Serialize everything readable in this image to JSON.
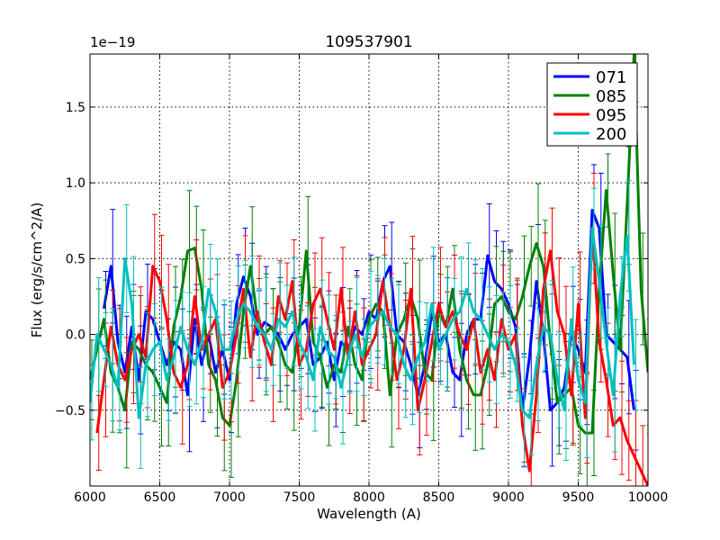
{
  "chart_data": {
    "type": "line",
    "title": "109537901",
    "xlabel": "Wavelength (A)",
    "ylabel": "Flux (erg/s/cm^2/A)",
    "offset_label": "1e−19",
    "xlim": [
      6000,
      10000
    ],
    "ylim": [
      -1.0,
      1.85
    ],
    "xticks": [
      6000,
      6500,
      7000,
      7500,
      8000,
      8500,
      9000,
      9500,
      10000
    ],
    "xtick_labels": [
      "6000",
      "6500",
      "7000",
      "7500",
      "8000",
      "8500",
      "9000",
      "9500",
      "10000"
    ],
    "yticks": [
      -0.5,
      0.0,
      0.5,
      1.0,
      1.5
    ],
    "ytick_labels": [
      "−0.5",
      "0.0",
      "0.5",
      "1.0",
      "1.5"
    ],
    "grid": true,
    "legend_position": "top-right",
    "series": [
      {
        "name": "071",
        "color": "#0000ff",
        "x": [
          6100,
          6150,
          6200,
          6250,
          6300,
          6350,
          6400,
          6450,
          6500,
          6550,
          6600,
          6650,
          6700,
          6750,
          6800,
          6850,
          6900,
          6950,
          7000,
          7050,
          7100,
          7150,
          7200,
          7250,
          7300,
          7350,
          7400,
          7450,
          7500,
          7550,
          7600,
          7650,
          7700,
          7750,
          7800,
          7850,
          7900,
          7950,
          8000,
          8050,
          8100,
          8150,
          8200,
          8250,
          8300,
          8350,
          8400,
          8450,
          8500,
          8550,
          8600,
          8650,
          8700,
          8750,
          8800,
          8850,
          8900,
          8950,
          9000,
          9050,
          9100,
          9150,
          9200,
          9250,
          9300,
          9350,
          9400,
          9450,
          9500,
          9550,
          9600,
          9650,
          9700,
          9750,
          9800,
          9850,
          9900
        ],
        "y": [
          0.17,
          0.45,
          -0.05,
          -0.25,
          0.05,
          -0.3,
          0.15,
          0.1,
          -0.05,
          -0.2,
          -0.05,
          -0.1,
          -0.4,
          0.1,
          -0.2,
          0.0,
          -0.25,
          -0.1,
          -0.3,
          0.2,
          0.38,
          0.25,
          0.0,
          0.08,
          0.05,
          0.0,
          -0.1,
          0.0,
          0.05,
          0.1,
          -0.2,
          -0.15,
          -0.05,
          -0.3,
          -0.05,
          -0.1,
          0.05,
          0.0,
          0.15,
          0.1,
          0.35,
          0.45,
          0.0,
          -0.05,
          -0.2,
          -0.4,
          -0.2,
          0.15,
          -0.05,
          0.0,
          -0.25,
          -0.3,
          0.0,
          0.1,
          0.1,
          0.52,
          0.35,
          0.3,
          0.2,
          0.05,
          -0.5,
          -0.15,
          0.35,
          0.0,
          -0.5,
          -0.45,
          -0.35,
          0.0,
          -0.1,
          -0.25,
          0.82,
          0.7,
          0.0,
          -0.05,
          -0.1,
          -0.15,
          -0.5
        ],
        "err": 0.3
      },
      {
        "name": "085",
        "color": "#008000",
        "x": [
          6000,
          6050,
          6100,
          6150,
          6200,
          6250,
          6300,
          6350,
          6400,
          6450,
          6500,
          6550,
          6600,
          6650,
          6700,
          6750,
          6800,
          6850,
          6900,
          6950,
          7000,
          7050,
          7100,
          7150,
          7200,
          7250,
          7300,
          7350,
          7400,
          7450,
          7500,
          7550,
          7600,
          7650,
          7700,
          7750,
          7800,
          7850,
          7900,
          7950,
          8000,
          8050,
          8100,
          8150,
          8200,
          8250,
          8300,
          8350,
          8400,
          8450,
          8500,
          8550,
          8600,
          8650,
          8700,
          8750,
          8800,
          8850,
          8900,
          8950,
          9000,
          9050,
          9100,
          9150,
          9200,
          9250,
          9300,
          9350,
          9400,
          9450,
          9500,
          9550,
          9600,
          9650,
          9700,
          9750,
          9800,
          9850,
          9900,
          9950,
          10000
        ],
        "y": [
          -0.3,
          -0.1,
          0.1,
          -0.25,
          -0.35,
          -0.5,
          -0.05,
          -0.1,
          -0.2,
          -0.25,
          -0.35,
          -0.45,
          0.05,
          0.25,
          0.55,
          0.57,
          0.3,
          -0.2,
          -0.3,
          -0.55,
          -0.6,
          -0.3,
          0.15,
          0.45,
          0.1,
          0.0,
          0.05,
          -0.05,
          -0.2,
          -0.25,
          0.05,
          0.55,
          -0.05,
          -0.15,
          -0.35,
          -0.2,
          -0.25,
          0.05,
          -0.2,
          -0.3,
          0.1,
          0.2,
          0.15,
          -0.4,
          0.0,
          0.1,
          0.25,
          0.1,
          -0.25,
          -0.3,
          0.15,
          0.05,
          0.3,
          -0.1,
          -0.3,
          -0.4,
          -0.4,
          -0.2,
          0.2,
          0.25,
          0.15,
          0.1,
          0.25,
          0.45,
          0.6,
          0.45,
          -0.05,
          -0.45,
          -0.4,
          -0.35,
          -0.6,
          -0.65,
          -0.65,
          0.3,
          0.95,
          0.4,
          -0.1,
          0.85,
          1.85,
          0.3,
          -0.25
        ],
        "err": 0.32
      },
      {
        "name": "095",
        "color": "#ff0000",
        "x": [
          6050,
          6100,
          6150,
          6200,
          6250,
          6300,
          6350,
          6400,
          6450,
          6500,
          6550,
          6600,
          6650,
          6700,
          6750,
          6800,
          6850,
          6900,
          6950,
          7000,
          7050,
          7100,
          7150,
          7200,
          7250,
          7300,
          7350,
          7400,
          7450,
          7500,
          7550,
          7600,
          7650,
          7700,
          7750,
          7800,
          7850,
          7900,
          7950,
          8000,
          8050,
          8100,
          8150,
          8200,
          8250,
          8300,
          8350,
          8400,
          8450,
          8500,
          8550,
          8600,
          8650,
          8700,
          8750,
          8800,
          8850,
          8900,
          8950,
          9000,
          9050,
          9100,
          9150,
          9200,
          9250,
          9300,
          9350,
          9400,
          9450,
          9500,
          9550,
          9600,
          9650,
          9700,
          9750,
          9800,
          9850,
          9900,
          9950,
          10000
        ],
        "y": [
          -0.65,
          -0.3,
          0.05,
          -0.2,
          -0.3,
          -0.1,
          0.0,
          -0.15,
          0.45,
          0.35,
          0.1,
          -0.25,
          -0.35,
          -0.2,
          0.25,
          -0.1,
          0.0,
          0.1,
          -0.35,
          -0.25,
          0.0,
          0.3,
          -0.15,
          0.15,
          -0.05,
          -0.2,
          0.25,
          0.1,
          0.35,
          -0.2,
          -0.1,
          0.2,
          0.3,
          0.1,
          -0.1,
          0.3,
          -0.15,
          0.15,
          -0.2,
          -0.1,
          0.0,
          0.35,
          0.05,
          -0.3,
          -0.1,
          0.3,
          -0.5,
          -0.3,
          -0.05,
          0.2,
          0.05,
          0.15,
          0.0,
          -0.1,
          0.1,
          -0.25,
          -0.1,
          -0.3,
          0.1,
          -0.1,
          0.0,
          -0.6,
          -0.9,
          -0.4,
          0.3,
          0.55,
          0.15,
          0.0,
          -0.4,
          0.2,
          -0.55,
          0.7,
          -0.05,
          -0.3,
          -0.6,
          -0.55,
          -0.7,
          -0.8,
          -0.9,
          -1.0
        ],
        "err": 0.3
      },
      {
        "name": "200",
        "color": "#00bfbf",
        "x": [
          6000,
          6050,
          6100,
          6150,
          6200,
          6250,
          6300,
          6350,
          6400,
          6450,
          6500,
          6550,
          6600,
          6650,
          6700,
          6750,
          6800,
          6850,
          6900,
          6950,
          7000,
          7050,
          7100,
          7150,
          7200,
          7250,
          7300,
          7350,
          7400,
          7450,
          7500,
          7550,
          7600,
          7650,
          7700,
          7750,
          7800,
          7850,
          7900,
          7950,
          8000,
          8050,
          8100,
          8150,
          8200,
          8250,
          8300,
          8350,
          8400,
          8450,
          8500,
          8550,
          8600,
          8650,
          8700,
          8750,
          8800,
          8850,
          8900,
          8950,
          9000,
          9050,
          9100,
          9150,
          9200,
          9250,
          9300,
          9350,
          9400,
          9450,
          9500,
          9550,
          9600,
          9650,
          9700,
          9750,
          9800,
          9850,
          9900
        ],
        "y": [
          -0.45,
          0.0,
          -0.1,
          -0.2,
          -0.35,
          0.5,
          0.2,
          -0.55,
          -0.2,
          -0.1,
          -0.05,
          -0.3,
          -0.15,
          0.05,
          -0.1,
          -0.2,
          -0.05,
          0.3,
          0.15,
          -0.1,
          -0.1,
          0.1,
          0.2,
          0.15,
          0.05,
          0.0,
          -0.1,
          0.1,
          0.05,
          0.15,
          -0.05,
          -0.15,
          -0.3,
          0.05,
          -0.1,
          -0.15,
          -0.35,
          -0.15,
          0.0,
          -0.15,
          0.05,
          0.1,
          0.15,
          0.05,
          0.0,
          -0.2,
          -0.3,
          -0.15,
          -0.05,
          0.2,
          -0.1,
          0.0,
          0.1,
          0.15,
          0.3,
          0.15,
          0.1,
          0.0,
          -0.1,
          0.0,
          -0.05,
          -0.2,
          -0.5,
          -0.55,
          -0.2,
          0.05,
          0.0,
          -0.3,
          -0.5,
          0.1,
          -0.3,
          -0.45,
          0.7,
          0.35,
          -0.05,
          -0.4,
          0.25,
          0.65,
          -0.2
        ],
        "err": 0.3
      }
    ]
  }
}
